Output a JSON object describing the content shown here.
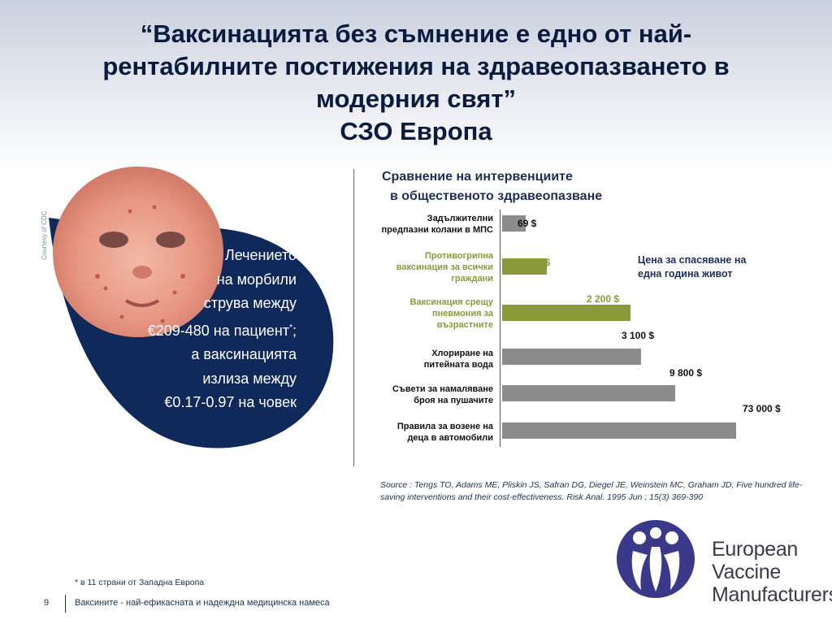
{
  "title": {
    "lines": [
      "“Ваксинацията без съмнение е едно от най-",
      "рентабилните  постижения на здравеопазването в",
      "модерния свят”",
      "СЗО Европа"
    ]
  },
  "photo_credit": "Courtesy of CDC",
  "treatment_text": {
    "lines": [
      "Лечението",
      "на морбили",
      "струва между",
      "€209-480 на пациент",
      "; ",
      "а ваксинацията",
      "излиза между",
      "€0.17-0.97 на човек"
    ],
    "asterisk": "*"
  },
  "chart_data": {
    "type": "bar",
    "orientation": "horizontal",
    "title": [
      "Сравнение на интервенциите",
      "в общественото здравеопазване"
    ],
    "categories": [
      [
        "Задължителни",
        "предпазни колани в МПС"
      ],
      [
        "Противогрипна",
        "ваксинация за всички",
        "граждани"
      ],
      [
        "Ваксинация срещу",
        "пневмония за",
        "възрастните"
      ],
      [
        "Хлориране на",
        "питейната вода"
      ],
      [
        "Съвети за намаляване",
        "броя на пушачите"
      ],
      [
        "Правила за возене  на",
        "деца в автомобили"
      ]
    ],
    "values": [
      69,
      140,
      2200,
      3100,
      9800,
      73000
    ],
    "value_labels": [
      "69 $",
      "140 $",
      "2 200 $",
      "3 100 $",
      "9 800 $",
      "73 000 $"
    ],
    "highlighted": [
      false,
      true,
      true,
      false,
      false,
      false
    ],
    "legend": [
      "Цена за спасяване на",
      "една година живот"
    ],
    "colors": {
      "vaccine": "#8a9a3a",
      "other": "#8c8c8c",
      "vaccine_label": "#8a9a3a",
      "other_label": "#111111"
    }
  },
  "source": "Source : Tengs TO, Adams ME, Pliskin JS, Safran DG, Diegel JE, Weinstein MC, Graham JD, Five hundred life-saving interventions and their cost-effectiveness. Risk Anal. 1995 Jun ; 15(3) 369-390",
  "logo": {
    "lines": [
      "European",
      "Vaccine",
      "Manufacturers"
    ],
    "color": "#3b3a8a"
  },
  "footnote": "* в 11 страни от Западна Европа",
  "page_number": "9",
  "footer": "Ваксините - най-ефикасната и надеждна медицинска намеса",
  "colors": {
    "navy": "#0f2a5a",
    "title": "#0b1b3d"
  }
}
